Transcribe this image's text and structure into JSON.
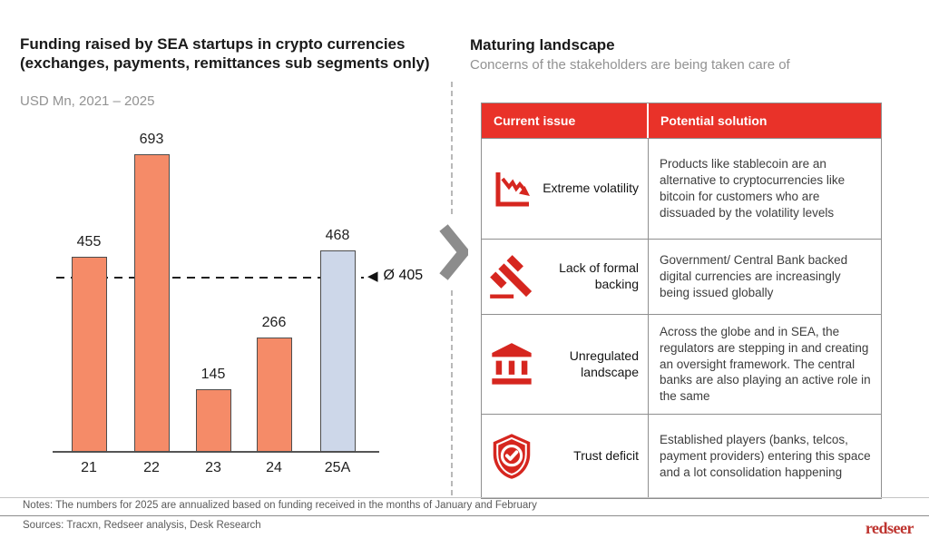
{
  "left": {
    "title": "Funding raised by SEA startups in crypto currencies (exchanges, payments, remittances sub segments only)",
    "subtitle": "USD Mn, 2021 – 2025"
  },
  "chart_data": {
    "type": "bar",
    "title": "Funding raised by SEA startups in crypto currencies (exchanges, payments, remittances sub segments only)",
    "units": "USD Mn",
    "categories": [
      "21",
      "22",
      "23",
      "24",
      "25A"
    ],
    "values": [
      455,
      693,
      145,
      266,
      468
    ],
    "bar_colors": [
      "#F58B68",
      "#F58B68",
      "#F58B68",
      "#F58B68",
      "#CDD7E9"
    ],
    "average_value": 405,
    "average_label": "Ø 405",
    "xlabel": "",
    "ylabel": "",
    "ylim": [
      0,
      756
    ],
    "grid": false,
    "legend": false
  },
  "right": {
    "title": "Maturing landscape",
    "subtitle": "Concerns of the stakeholders are being taken care of",
    "table": {
      "headers": [
        "Current issue",
        "Potential solution"
      ],
      "rows": [
        {
          "icon": "declining-chart-icon",
          "issue": "Extreme volatility",
          "solution": "Products like stablecoin are an alternative to cryptocurrencies like bitcoin for customers who are dissuaded by the volatility levels"
        },
        {
          "icon": "gavel-icon",
          "issue": "Lack of formal backing",
          "solution": "Government/ Central Bank backed digital currencies are increasingly being issued globally"
        },
        {
          "icon": "bank-icon",
          "issue": "Unregulated landscape",
          "solution": "Across the globe and in SEA, the regulators are stepping in and creating an oversight framework. The central banks are also playing an active role in the same"
        },
        {
          "icon": "shield-check-icon",
          "issue": "Trust deficit",
          "solution": "Established players (banks, telcos, payment providers) entering this space and a lot consolidation happening"
        }
      ]
    }
  },
  "footer": {
    "notes": "Notes: The numbers for 2025 are annualized based on funding received in the months of January and February",
    "sources": "Sources: Tracxn, Redseer analysis, Desk Research",
    "logo": "redseer"
  },
  "colors": {
    "bar": "#F58B68",
    "bar_annualized": "#CDD7E9",
    "table_header_red": "#E93229",
    "icon_red": "#D6261F",
    "chevron_gray": "#8C8C8C",
    "logo_red": "#BE342F"
  }
}
